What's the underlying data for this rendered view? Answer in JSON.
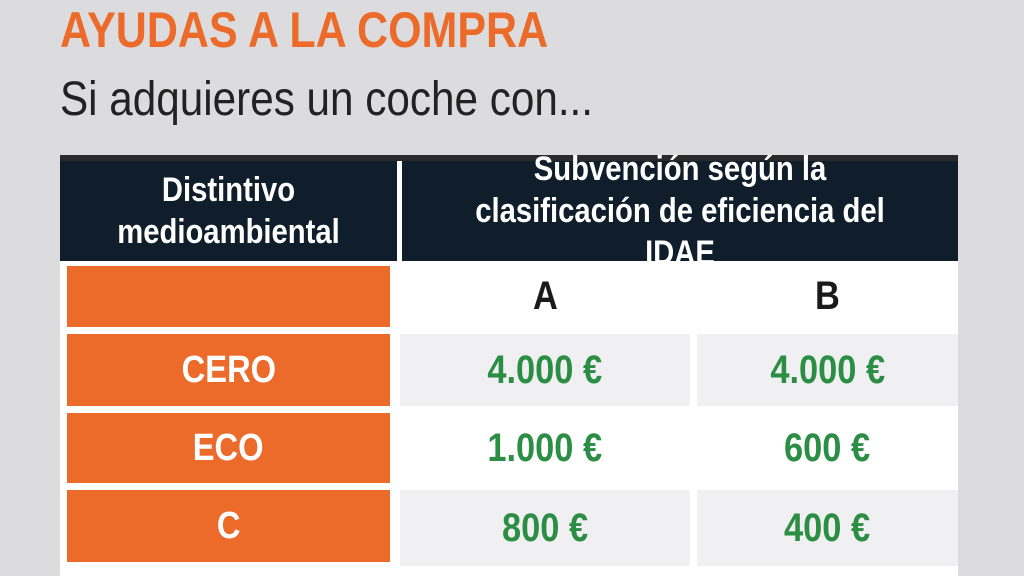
{
  "heading": {
    "title": "AYUDAS A LA COMPRA",
    "subtitle": "Si adquieres un coche con..."
  },
  "table": {
    "header_left": "Distintivo medioambiental",
    "header_right": "Subvención según la clasificación de eficiencia del IDAE",
    "columns": [
      "A",
      "B"
    ],
    "rows": [
      {
        "label": "CERO",
        "a": "4.000 €",
        "b": "4.000 €"
      },
      {
        "label": "ECO",
        "a": "1.000 €",
        "b": "600 €"
      },
      {
        "label": "C",
        "a": "800 €",
        "b": "400 €"
      }
    ],
    "colors": {
      "accent_orange": "#ec6a2a",
      "header_dark": "#0f1e2a",
      "value_green": "#2c8d45"
    }
  }
}
